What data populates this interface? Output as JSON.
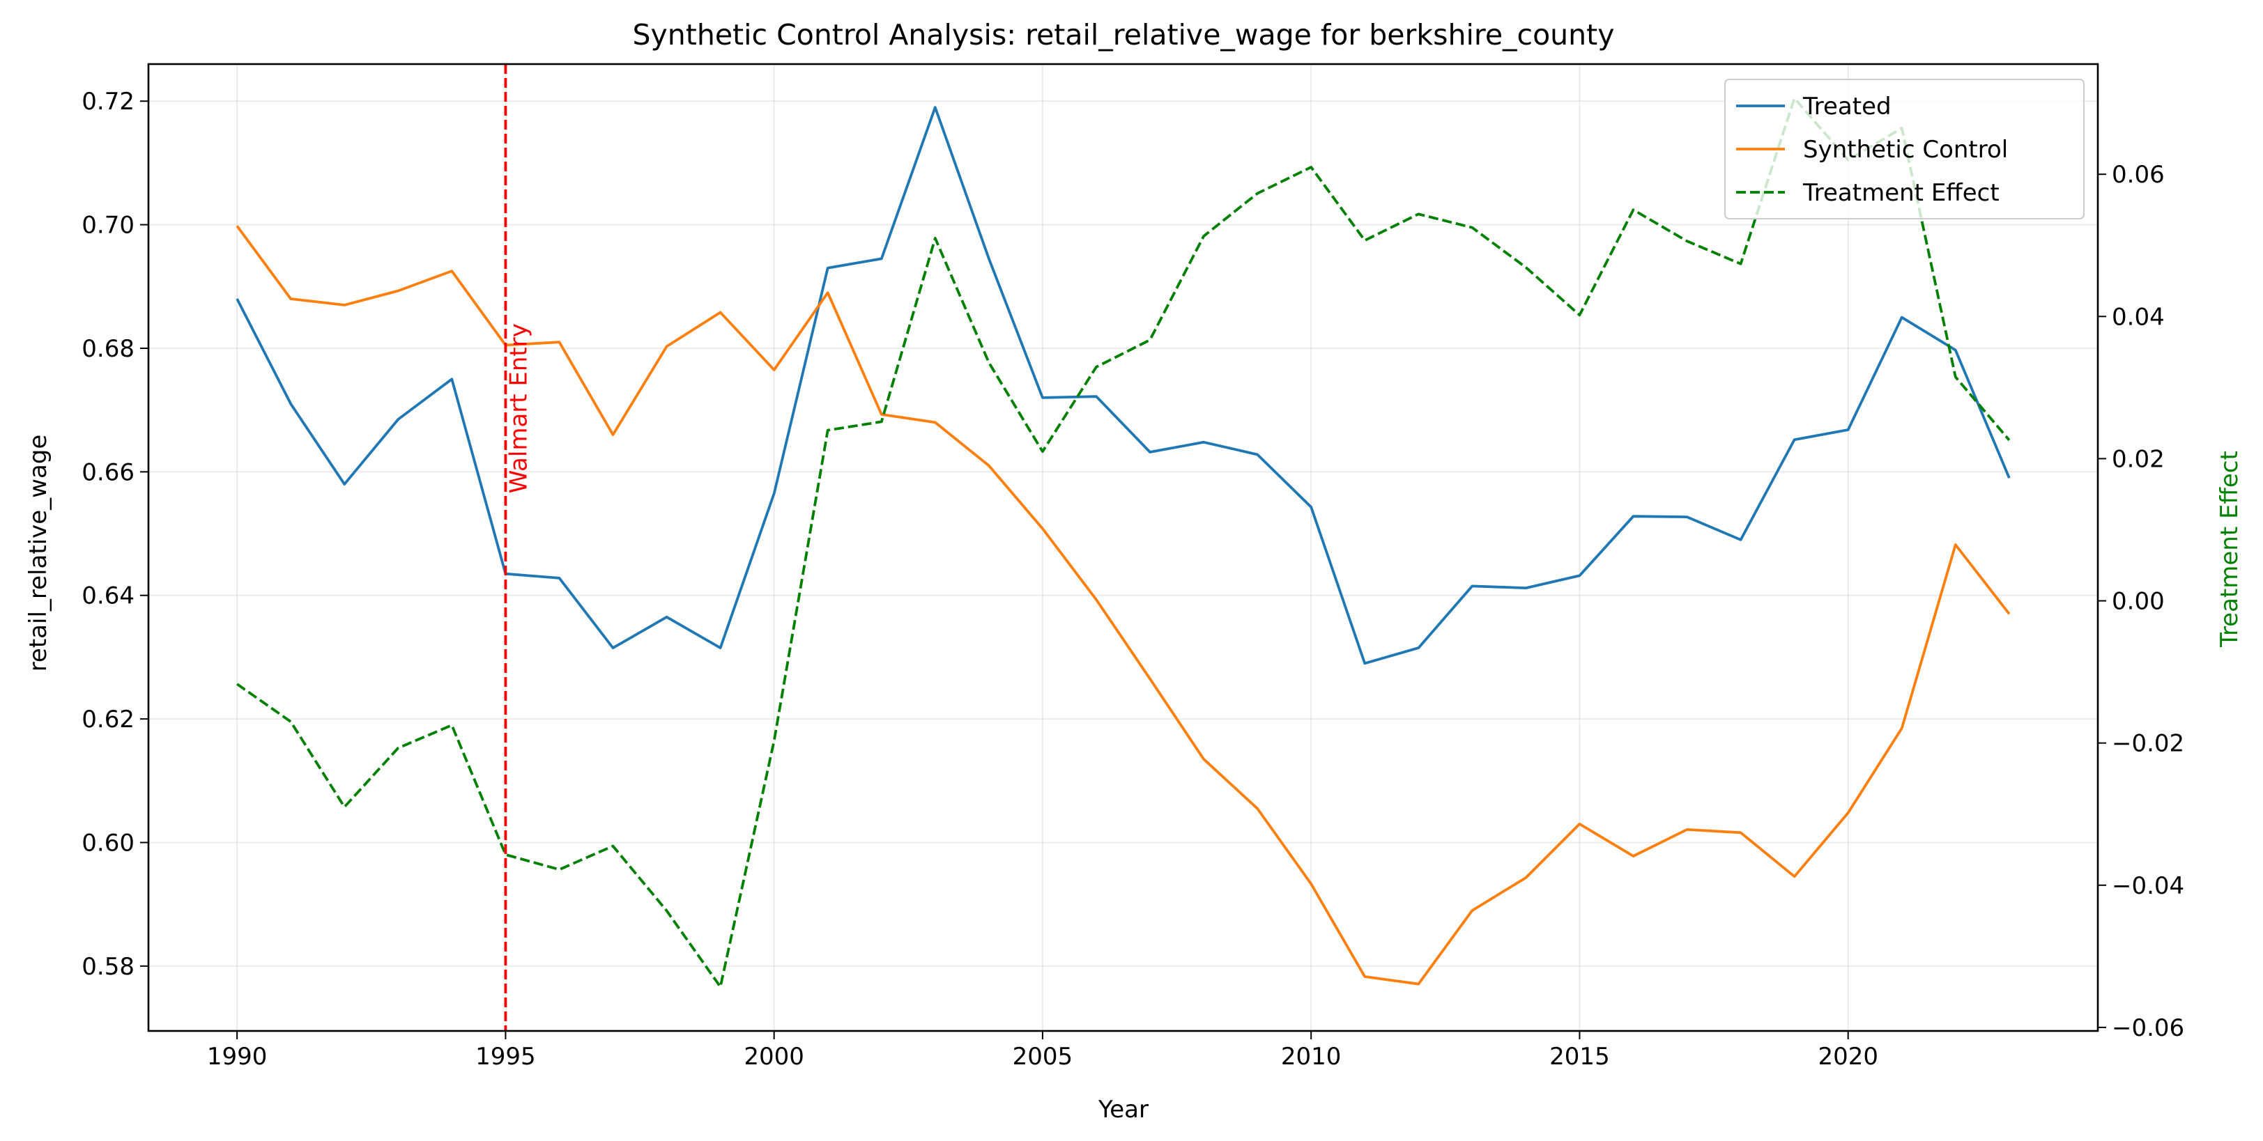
{
  "chart_data": {
    "type": "line",
    "title": "Synthetic Control Analysis: retail_relative_wage for berkshire_county",
    "xlabel": "Year",
    "ylabel": "retail_relative_wage",
    "y2label": "Treatment Effect",
    "xlim": [
      1988.35,
      2024.65
    ],
    "ylim": [
      0.5695,
      0.726
    ],
    "y2lim": [
      -0.0605,
      0.0755
    ],
    "x_ticks": [
      1990,
      1995,
      2000,
      2005,
      2010,
      2015,
      2020
    ],
    "y_ticks": [
      0.58,
      0.6,
      0.62,
      0.64,
      0.66,
      0.68,
      0.7,
      0.72
    ],
    "y2_ticks": [
      -0.06,
      -0.04,
      -0.02,
      0.0,
      0.02,
      0.04,
      0.06
    ],
    "grid": true,
    "legend_position": "top-right",
    "x": [
      1990,
      1991,
      1992,
      1993,
      1994,
      1995,
      1996,
      1997,
      1998,
      1999,
      2000,
      2001,
      2002,
      2003,
      2004,
      2005,
      2006,
      2007,
      2008,
      2009,
      2010,
      2011,
      2012,
      2013,
      2014,
      2015,
      2016,
      2017,
      2018,
      2019,
      2020,
      2021,
      2022,
      2023
    ],
    "series": [
      {
        "name": "Treated",
        "axis": "left",
        "color": "#1f77b4",
        "style": "solid",
        "values": [
          0.688,
          0.671,
          0.658,
          0.6685,
          0.675,
          0.6435,
          0.6428,
          0.6315,
          0.6365,
          0.6315,
          0.6565,
          0.693,
          0.6945,
          0.719,
          0.6945,
          0.672,
          0.6722,
          0.6632,
          0.6648,
          0.6628,
          0.6543,
          0.629,
          0.6315,
          0.6415,
          0.6412,
          0.6432,
          0.6528,
          0.6527,
          0.649,
          0.6652,
          0.6668,
          0.685,
          0.6797,
          0.659
        ]
      },
      {
        "name": "Synthetic Control",
        "axis": "left",
        "color": "#ff7f0e",
        "style": "solid",
        "values": [
          0.6998,
          0.688,
          0.687,
          0.6893,
          0.6925,
          0.6805,
          0.681,
          0.666,
          0.6803,
          0.6858,
          0.6765,
          0.689,
          0.6693,
          0.668,
          0.661,
          0.6508,
          0.6393,
          0.6265,
          0.6135,
          0.6055,
          0.5933,
          0.5783,
          0.5771,
          0.589,
          0.5943,
          0.603,
          0.5978,
          0.6021,
          0.6016,
          0.5945,
          0.6048,
          0.6185,
          0.6482,
          0.637
        ]
      },
      {
        "name": "Treatment Effect",
        "axis": "right",
        "color": "#008000",
        "style": "dashed",
        "values": [
          -0.0117,
          -0.017,
          -0.029,
          -0.0207,
          -0.0175,
          -0.0357,
          -0.0378,
          -0.0345,
          -0.0436,
          -0.0543,
          -0.0197,
          0.024,
          0.0252,
          0.051,
          0.0335,
          0.021,
          0.0329,
          0.0367,
          0.0513,
          0.0573,
          0.061,
          0.0507,
          0.0544,
          0.0525,
          0.0469,
          0.0402,
          0.055,
          0.0506,
          0.0474,
          0.0707,
          0.062,
          0.0665,
          0.0315,
          0.0226
        ]
      }
    ],
    "annotations": [
      {
        "text": "Walmart Entry",
        "x": 1995,
        "color": "#ff0000",
        "style": "dashed-vertical-line"
      }
    ]
  }
}
